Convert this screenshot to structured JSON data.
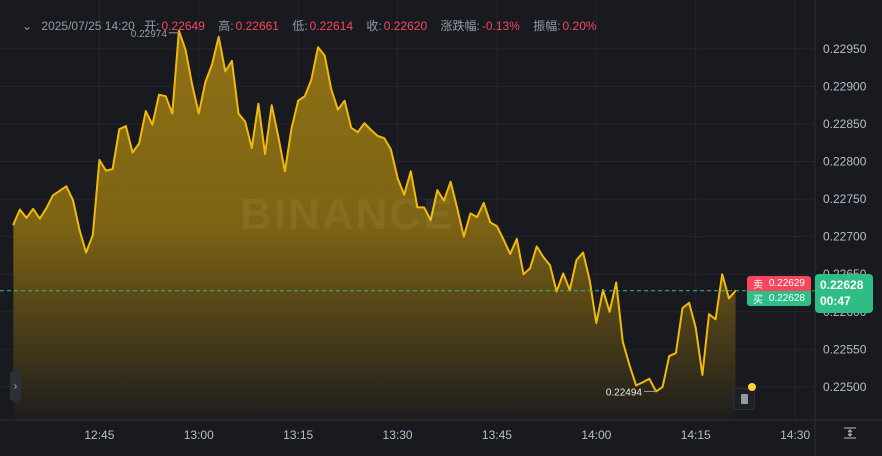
{
  "header": {
    "date_time": "2025/07/25 14:20",
    "open_label": "开:",
    "open": "0.22649",
    "high_label": "高:",
    "high": "0.22661",
    "low_label": "低:",
    "low": "0.22614",
    "close_label": "收:",
    "close": "0.22620",
    "change_label": "涨跌幅:",
    "change": "-0.13%",
    "amplitude_label": "振幅:",
    "amplitude": "0.20%"
  },
  "watermark": "BINANCE",
  "order_book": {
    "sell_label": "卖",
    "sell_price": "0.22629",
    "buy_label": "买",
    "buy_price": "0.22628"
  },
  "last_price": {
    "price": "0.22628",
    "countdown": "00:47"
  },
  "colors": {
    "line": "#f0b90b",
    "sell": "#f6465d",
    "buy": "#2ebd85",
    "background": "#181a20"
  },
  "chart_data": {
    "type": "area",
    "x_start": "12:32",
    "interval_minutes": 1,
    "x_range": [
      "12:30",
      "14:33"
    ],
    "y_range": [
      0.22456,
      0.23015
    ],
    "grid": true,
    "y_axis_position": "right",
    "x_ticks": [
      "12:45",
      "13:00",
      "13:15",
      "13:30",
      "13:45",
      "14:00",
      "14:15",
      "14:30"
    ],
    "y_ticks": [
      "0.22950",
      "0.22900",
      "0.22850",
      "0.22800",
      "0.22750",
      "0.22700",
      "0.22650",
      "0.22600",
      "0.22550",
      "0.22500"
    ],
    "max_label": "0.22974",
    "min_label": "0.22494",
    "current_price": 0.22628,
    "values": [
      0.22716,
      0.22736,
      0.22725,
      0.22737,
      0.22724,
      0.22738,
      0.22755,
      0.22761,
      0.22767,
      0.22749,
      0.22709,
      0.22679,
      0.22702,
      0.22802,
      0.22788,
      0.2279,
      0.22843,
      0.22847,
      0.22812,
      0.22824,
      0.22867,
      0.22849,
      0.22889,
      0.22887,
      0.22864,
      0.22974,
      0.22949,
      0.22902,
      0.22864,
      0.22906,
      0.22929,
      0.22966,
      0.2292,
      0.22934,
      0.22864,
      0.22853,
      0.22818,
      0.22877,
      0.2281,
      0.22875,
      0.22833,
      0.22787,
      0.22844,
      0.22881,
      0.22887,
      0.22909,
      0.22952,
      0.22941,
      0.22896,
      0.22869,
      0.22881,
      0.22845,
      0.22839,
      0.22851,
      0.22842,
      0.22834,
      0.22831,
      0.22816,
      0.22778,
      0.22756,
      0.22787,
      0.22739,
      0.22739,
      0.22722,
      0.22762,
      0.22748,
      0.22773,
      0.22738,
      0.227,
      0.22731,
      0.22726,
      0.22745,
      0.22719,
      0.22714,
      0.22696,
      0.22677,
      0.22697,
      0.2265,
      0.22658,
      0.22687,
      0.22673,
      0.22662,
      0.22627,
      0.22651,
      0.22629,
      0.22669,
      0.22679,
      0.22642,
      0.22585,
      0.22629,
      0.226,
      0.22639,
      0.2256,
      0.22529,
      0.22502,
      0.22506,
      0.22511,
      0.22494,
      0.225,
      0.22541,
      0.22545,
      0.22605,
      0.22612,
      0.22579,
      0.22516,
      0.22597,
      0.2259,
      0.2265,
      0.22618,
      0.22628
    ]
  }
}
